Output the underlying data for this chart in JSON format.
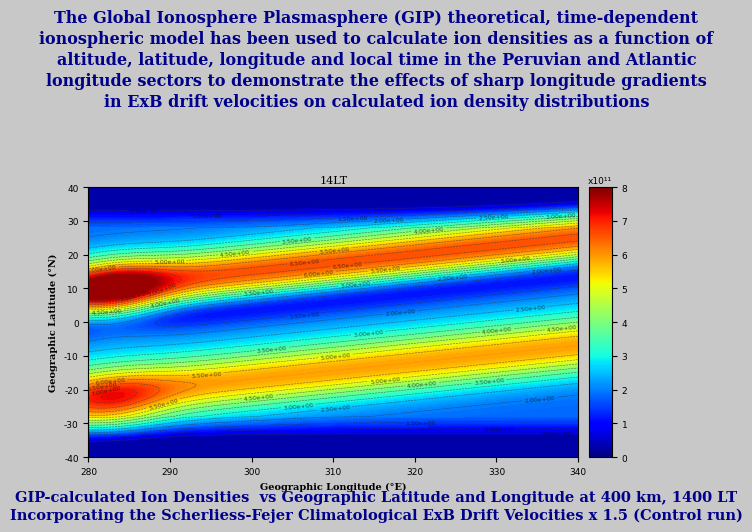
{
  "title_text": "The Global Ionosphere Plasmasphere (GIP) theoretical, time-dependent\nionospheric model has been used to calculate ion densities as a function of\naltitude, latitude, longitude and local time in the Peruvian and Atlantic\nlongitude sectors to demonstrate the effects of sharp longitude gradients\nin ExB drift velocities on calculated ion density distributions",
  "caption_line1": "GIP-calculated Ion Densities  vs Geographic Latitude and Longitude at 400 km, 1400 LT",
  "caption_line2": "Incorporating the Scherliess-Fejer Climatological ExB Drift Velocities x 1.5 (Control run)",
  "plot_title": "14LT",
  "xlabel": "Geographic Longitude (°E)",
  "ylabel": "Geographic Latitude (°N)",
  "colorbar_label": "x10¹¹",
  "lon_min": 280,
  "lon_max": 340,
  "lat_min": -40,
  "lat_max": 40,
  "cbar_min": 0,
  "cbar_max": 8,
  "background_color": "#c8c8c8",
  "title_color": "#00008B",
  "caption_color": "#00008B",
  "title_fontsize": 11.5,
  "caption_fontsize": 10.5,
  "plot_title_fontsize": 8,
  "axis_label_fontsize": 7,
  "tick_fontsize": 6.5
}
